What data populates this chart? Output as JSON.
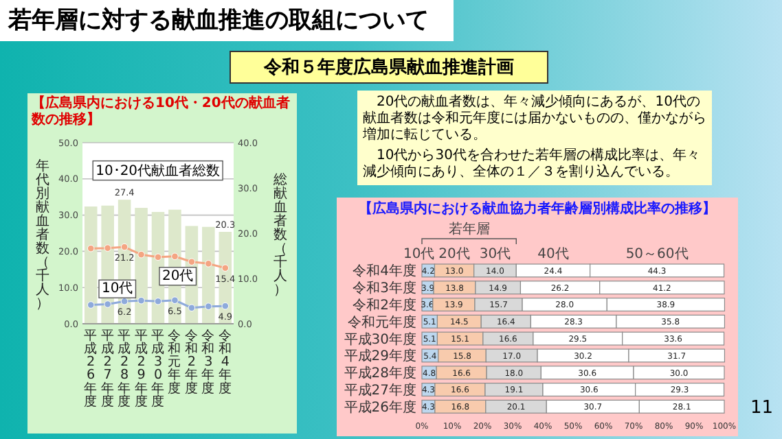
{
  "chart_data": [
    {
      "type": "other",
      "title": "若年層に対する献血推進の取組について",
      "subtitle": "令和５年度広島県献血推進計画",
      "annotations": [
        "20代の献血者数は、年々減少傾向にあるが、10代の献血者数は令和元年度には届かないものの、僅かながら増加に転じている。",
        "10代から30代を合わせた若年層の構成比率は、年々減少傾向にあり、全体の１／３を割り込んでいる。",
        "11"
      ]
    },
    {
      "type": "bar",
      "title": "【広島県内における10代・20代の献血者数の推移】",
      "ylabel": "年代別献血者数（千人）",
      "y2label": "総献血者数（千人）",
      "categories": [
        "平成26年度",
        "平成27年度",
        "平成28年度",
        "平成29年度",
        "平成30年度",
        "令和元年度",
        "令和2年度",
        "令和3年度",
        "令和4年度"
      ],
      "ylim": [
        0,
        50
      ],
      "yticks": [
        {
          "value": 0,
          "label": "0.0"
        },
        {
          "value": 10,
          "label": "10.0"
        },
        {
          "value": 20,
          "label": "20.0"
        },
        {
          "value": 30,
          "label": "30.0"
        },
        {
          "value": 40,
          "label": "40.0"
        },
        {
          "value": 50,
          "label": "50.0"
        }
      ],
      "y2lim": [
        0,
        40
      ],
      "y2ticks": [
        {
          "value": 0,
          "label": "0.0"
        },
        {
          "value": 10,
          "label": "10.0"
        },
        {
          "value": 20,
          "label": "20.0"
        },
        {
          "value": 30,
          "label": "30.0"
        },
        {
          "value": 40,
          "label": "40.0"
        }
      ],
      "grid": "y",
      "marker": "circle",
      "series": [
        {
          "name": "10･20代献血者総数",
          "type": "bar",
          "axis": "y2",
          "color": "#dde8cb",
          "values": [
            25.9,
            26.1,
            27.4,
            25.6,
            24.7,
            25.2,
            21.6,
            21.4,
            20.3
          ],
          "value_labels": [
            null,
            null,
            "27.4",
            null,
            null,
            null,
            null,
            null,
            "20.3"
          ]
        },
        {
          "name": "20代",
          "type": "line",
          "color": "#f4a582",
          "values": [
            20.8,
            20.9,
            21.2,
            19.1,
            18.4,
            18.6,
            17.1,
            16.6,
            15.4
          ],
          "value_labels": [
            null,
            null,
            "21.2",
            null,
            null,
            null,
            null,
            null,
            "15.4"
          ]
        },
        {
          "name": "10代",
          "type": "line",
          "color": "#8eaadb",
          "values": [
            5.2,
            5.4,
            6.2,
            6.4,
            6.2,
            6.5,
            4.4,
            4.8,
            4.9
          ],
          "value_labels": [
            null,
            null,
            "6.2",
            null,
            null,
            "6.5",
            null,
            null,
            "4.9"
          ]
        }
      ]
    },
    {
      "type": "bar",
      "orientation": "horizontal",
      "stacked": true,
      "title": "【広島県内における献血協力者年齢層別構成比率の推移】",
      "annotations": [
        "若年層"
      ],
      "categories": [
        "令和4年度",
        "令和3年度",
        "令和2年度",
        "令和元年度",
        "平成30年度",
        "平成29年度",
        "平成28年度",
        "平成27年度",
        "平成26年度"
      ],
      "xlim": [
        0,
        100
      ],
      "xticks": [
        {
          "value": 0,
          "label": "0%"
        },
        {
          "value": 10,
          "label": "10%"
        },
        {
          "value": 20,
          "label": "20%"
        },
        {
          "value": 30,
          "label": "30%"
        },
        {
          "value": 40,
          "label": "40%"
        },
        {
          "value": 50,
          "label": "50%"
        },
        {
          "value": 60,
          "label": "60%"
        },
        {
          "value": 70,
          "label": "70%"
        },
        {
          "value": 80,
          "label": "80%"
        },
        {
          "value": 90,
          "label": "90%"
        },
        {
          "value": 100,
          "label": "100%"
        }
      ],
      "series": [
        {
          "name": "10代",
          "color": "#bdd7ee",
          "values": [
            4.2,
            3.9,
            3.6,
            5.1,
            5.1,
            5.4,
            4.8,
            4.3,
            4.3
          ],
          "value_labels": [
            "4.2",
            "3.9",
            "3.6",
            "5.1",
            "5.1",
            "5.4",
            "4.8",
            "4.3",
            "4.3"
          ]
        },
        {
          "name": "20代",
          "color": "#f8cbad",
          "values": [
            13.0,
            13.8,
            13.9,
            14.5,
            15.1,
            15.8,
            16.6,
            16.6,
            16.8
          ],
          "value_labels": [
            "13.0",
            "13.8",
            "13.9",
            "14.5",
            "15.1",
            "15.8",
            "16.6",
            "16.6",
            "16.8"
          ]
        },
        {
          "name": "30代",
          "color": "#d9d9d9",
          "values": [
            14.0,
            14.9,
            15.7,
            16.4,
            16.6,
            17.0,
            18.0,
            19.1,
            20.1
          ],
          "value_labels": [
            "14.0",
            "14.9",
            "15.7",
            "16.4",
            "16.6",
            "17.0",
            "18.0",
            "19.1",
            "20.1"
          ]
        },
        {
          "name": "40代",
          "color": "#ffffff",
          "values": [
            24.4,
            26.2,
            28.0,
            28.3,
            29.5,
            30.2,
            30.6,
            30.6,
            30.7
          ],
          "value_labels": [
            "24.4",
            "26.2",
            "28.0",
            "28.3",
            "29.5",
            "30.2",
            "30.6",
            "30.6",
            "30.7"
          ]
        },
        {
          "name": "50～60代",
          "color": "#ffffff",
          "values": [
            44.3,
            41.2,
            38.9,
            35.8,
            33.6,
            31.7,
            30.0,
            29.3,
            28.1
          ],
          "value_labels": [
            "44.3",
            "41.2",
            "38.9",
            "35.8",
            "33.6",
            "31.7",
            "30.0",
            "29.3",
            "28.1"
          ]
        }
      ]
    }
  ]
}
